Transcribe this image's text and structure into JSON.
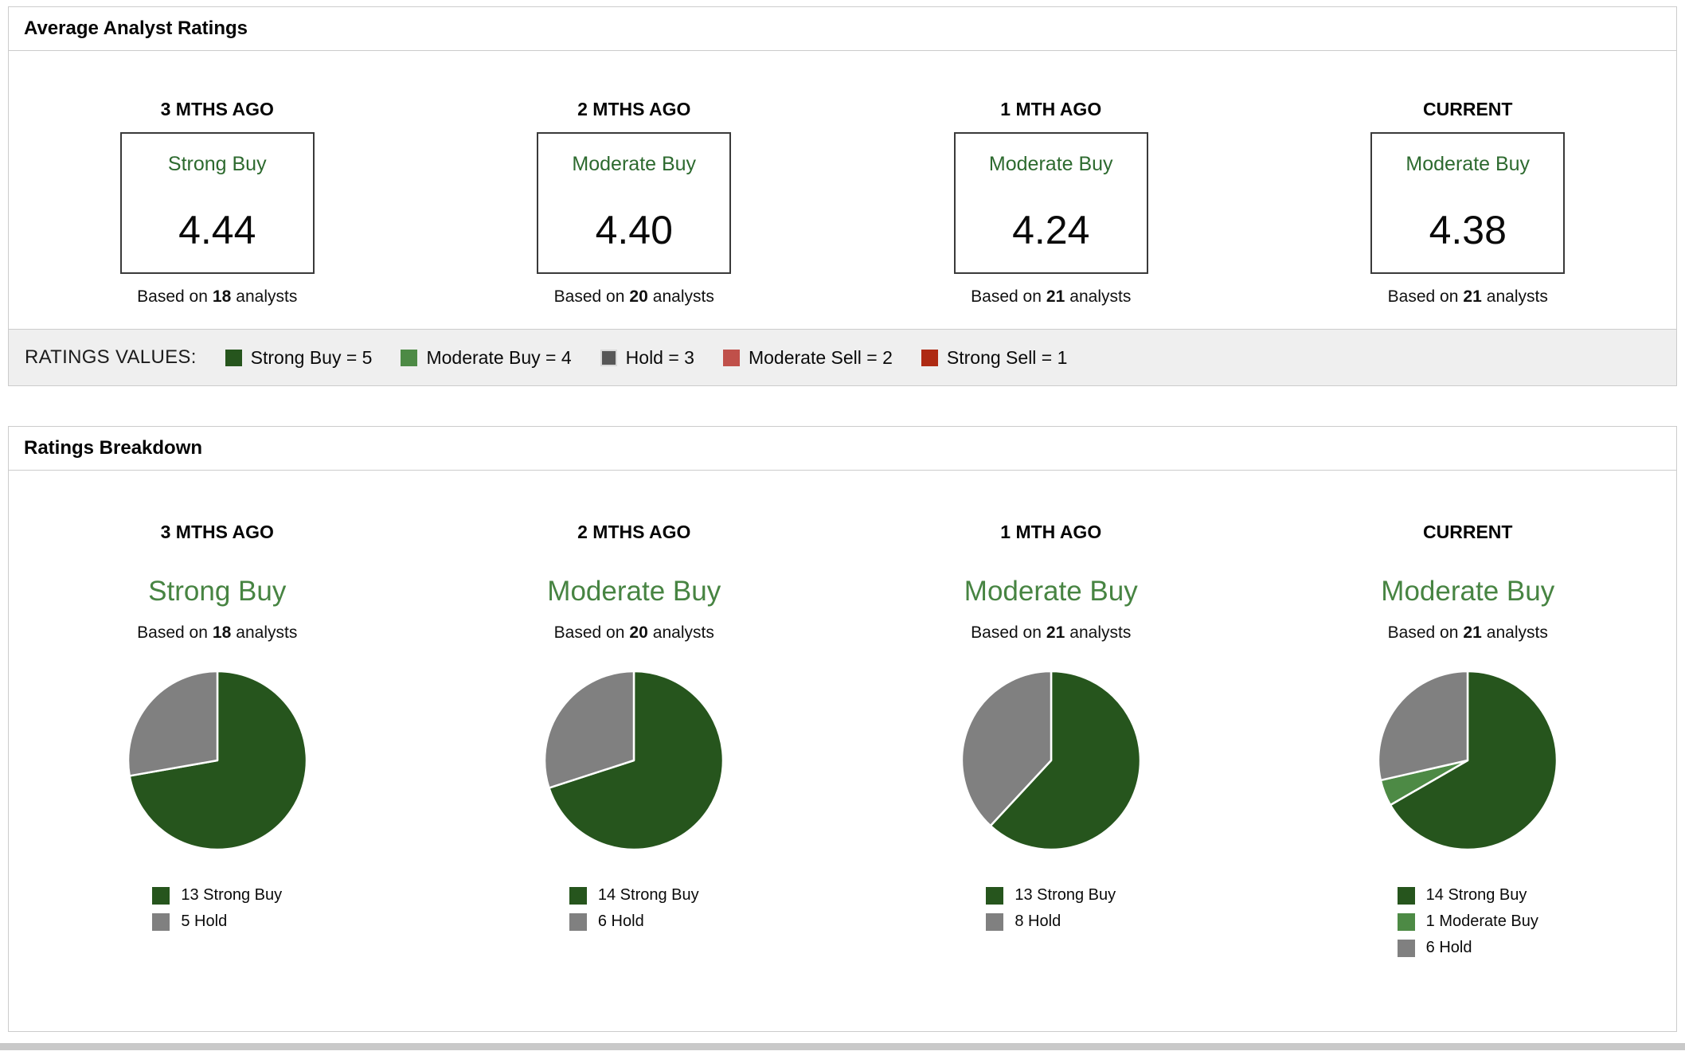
{
  "panels": {
    "average": {
      "title": "Average Analyst Ratings",
      "columns": [
        {
          "period": "3 MTHS AGO",
          "rating": "Strong Buy",
          "value": "4.44",
          "based_prefix": "Based on",
          "count": "18",
          "based_suffix": "analysts"
        },
        {
          "period": "2 MTHS AGO",
          "rating": "Moderate Buy",
          "value": "4.40",
          "based_prefix": "Based on",
          "count": "20",
          "based_suffix": "analysts"
        },
        {
          "period": "1 MTH AGO",
          "rating": "Moderate Buy",
          "value": "4.24",
          "based_prefix": "Based on",
          "count": "21",
          "based_suffix": "analysts"
        },
        {
          "period": "CURRENT",
          "rating": "Moderate Buy",
          "value": "4.38",
          "based_prefix": "Based on",
          "count": "21",
          "based_suffix": "analysts"
        }
      ]
    },
    "values_bar": {
      "label": "RATINGS VALUES:",
      "items": [
        {
          "label": "Strong Buy = 5",
          "color": "#26551D"
        },
        {
          "label": "Moderate Buy = 4",
          "color": "#4D8A45"
        },
        {
          "label": "Hold = 3",
          "color": "#575757",
          "border": "#d9d9d9"
        },
        {
          "label": "Moderate Sell = 2",
          "color": "#C0504A"
        },
        {
          "label": "Strong Sell = 1",
          "color": "#AE2A13"
        }
      ]
    },
    "breakdown": {
      "title": "Ratings Breakdown",
      "columns": [
        {
          "period": "3 MTHS AGO",
          "rating": "Strong Buy",
          "based_prefix": "Based on",
          "count": "18",
          "based_suffix": "analysts"
        },
        {
          "period": "2 MTHS AGO",
          "rating": "Moderate Buy",
          "based_prefix": "Based on",
          "count": "20",
          "based_suffix": "analysts"
        },
        {
          "period": "1 MTH AGO",
          "rating": "Moderate Buy",
          "based_prefix": "Based on",
          "count": "21",
          "based_suffix": "analysts"
        },
        {
          "period": "CURRENT",
          "rating": "Moderate Buy",
          "based_prefix": "Based on",
          "count": "21",
          "based_suffix": "analysts"
        }
      ]
    }
  },
  "chart_data": [
    {
      "type": "pie",
      "title": "3 MTHS AGO",
      "labels": [
        "Strong Buy",
        "Hold"
      ],
      "values": [
        13,
        5
      ],
      "colors": [
        "#26551D",
        "#808080"
      ],
      "total": 18,
      "legend_position": "bottom"
    },
    {
      "type": "pie",
      "title": "2 MTHS AGO",
      "labels": [
        "Strong Buy",
        "Hold"
      ],
      "values": [
        14,
        6
      ],
      "colors": [
        "#26551D",
        "#808080"
      ],
      "total": 20,
      "legend_position": "bottom"
    },
    {
      "type": "pie",
      "title": "1 MTH AGO",
      "labels": [
        "Strong Buy",
        "Hold"
      ],
      "values": [
        13,
        8
      ],
      "colors": [
        "#26551D",
        "#808080"
      ],
      "total": 21,
      "legend_position": "bottom"
    },
    {
      "type": "pie",
      "title": "CURRENT",
      "labels": [
        "Strong Buy",
        "Moderate Buy",
        "Hold"
      ],
      "values": [
        14,
        1,
        6
      ],
      "colors": [
        "#26551D",
        "#4D8A45",
        "#808080"
      ],
      "total": 21,
      "legend_position": "bottom"
    }
  ]
}
